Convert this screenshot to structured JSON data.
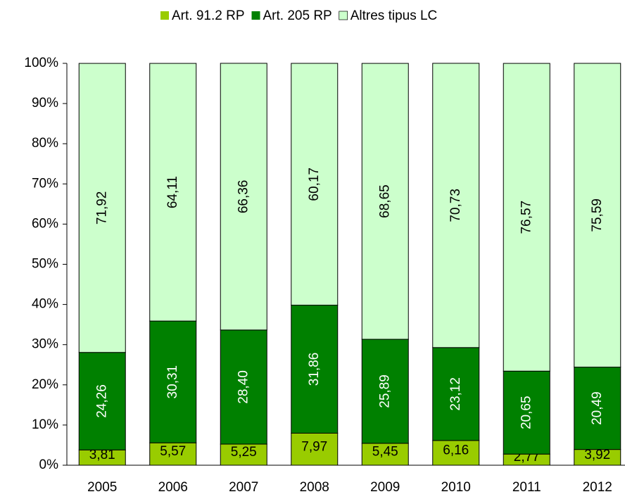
{
  "chart_data": {
    "type": "stacked_bar",
    "categories": [
      "2005",
      "2006",
      "2007",
      "2008",
      "2009",
      "2010",
      "2011",
      "2012"
    ],
    "series": [
      {
        "name": "Art. 91.2 RP",
        "color": "#99cc00",
        "values": [
          3.81,
          5.57,
          5.25,
          7.97,
          5.45,
          6.16,
          2.77,
          3.92
        ],
        "value_labels": [
          "3,81",
          "5,57",
          "5,25",
          "7,97",
          "5,45",
          "6,16",
          "2,77",
          "3,92"
        ]
      },
      {
        "name": "Art. 205 RP",
        "color": "#008000",
        "values": [
          24.26,
          30.31,
          28.4,
          31.86,
          25.89,
          23.12,
          20.65,
          20.49
        ],
        "value_labels": [
          "24,26",
          "30,31",
          "28,40",
          "31,86",
          "25,89",
          "23,12",
          "20,65",
          "20,49"
        ]
      },
      {
        "name": "Altres tipus LC",
        "color": "#ccffcc",
        "values": [
          71.92,
          64.11,
          66.36,
          60.17,
          68.65,
          70.73,
          76.57,
          75.59
        ],
        "value_labels": [
          "71,92",
          "64,11",
          "66,36",
          "60,17",
          "68,65",
          "70,73",
          "76,57",
          "75,59"
        ]
      }
    ],
    "ylim": [
      0,
      100
    ],
    "yticks": [
      {
        "value": 0,
        "label": "0%"
      },
      {
        "value": 10,
        "label": "10%"
      },
      {
        "value": 20,
        "label": "20%"
      },
      {
        "value": 30,
        "label": "30%"
      },
      {
        "value": 40,
        "label": "40%"
      },
      {
        "value": 50,
        "label": "50%"
      },
      {
        "value": 60,
        "label": "60%"
      },
      {
        "value": 70,
        "label": "70%"
      },
      {
        "value": 80,
        "label": "80%"
      },
      {
        "value": 90,
        "label": "90%"
      },
      {
        "value": 100,
        "label": "100%"
      }
    ],
    "legend": "top"
  }
}
